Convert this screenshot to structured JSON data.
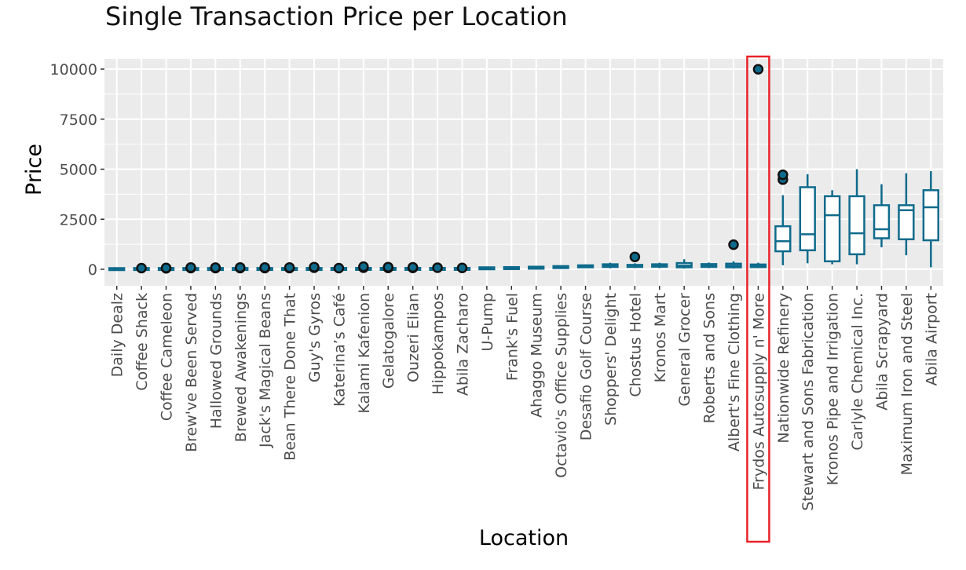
{
  "chart_data": {
    "type": "box",
    "title": "Single Transaction Price per Location",
    "xlabel": "Location",
    "ylabel": "Price",
    "ylim": [
      -500,
      10500
    ],
    "yticks": [
      0,
      2500,
      5000,
      7500,
      10000
    ],
    "ytick_labels": [
      "0",
      "2500",
      "5000",
      "7500",
      "10000"
    ],
    "grid": true,
    "box_color": "#0f6b8c",
    "outlier_color": "#111111",
    "highlight_color": "#e8232a",
    "highlight_category": "Frydos Autosupply n' More",
    "categories": [
      "Daily Dealz",
      "Coffee Shack",
      "Coffee Cameleon",
      "Brew've Been Served",
      "Hallowed Grounds",
      "Brewed Awakenings",
      "Jack's Magical Beans",
      "Bean There Done That",
      "Guy's Gyros",
      "Katerina’s Café",
      "Kalami Kafenion",
      "Gelatogalore",
      "Ouzeri Elian",
      "Hippokampos",
      "Abila Zacharo",
      "U-Pump",
      "Frank's Fuel",
      "Ahaggo Museum",
      "Octavio's Office Supplies",
      "Desafio Golf Course",
      "Shoppers' Delight",
      "Chostus Hotel",
      "Kronos Mart",
      "General Grocer",
      "Roberts and Sons",
      "Albert's Fine Clothing",
      "Frydos Autosupply n' More",
      "Nationwide Refinery",
      "Stewart and Sons Fabrication",
      "Kronos Pipe and Irrigation",
      "Carlyle Chemical Inc.",
      "Abila Scrapyard",
      "Maximum Iron and Steel",
      "Abila Airport"
    ],
    "series": [
      {
        "boxes": [
          {
            "min": 5,
            "q1": 8,
            "median": 10,
            "q3": 12,
            "max": 16,
            "outliers": []
          },
          {
            "min": 8,
            "q1": 12,
            "median": 14,
            "q3": 17,
            "max": 22,
            "outliers": [
              60
            ]
          },
          {
            "min": 8,
            "q1": 12,
            "median": 15,
            "q3": 18,
            "max": 24,
            "outliers": [
              50,
              70
            ]
          },
          {
            "min": 8,
            "q1": 12,
            "median": 15,
            "q3": 18,
            "max": 24,
            "outliers": [
              60,
              90
            ]
          },
          {
            "min": 8,
            "q1": 12,
            "median": 15,
            "q3": 18,
            "max": 25,
            "outliers": [
              60,
              85
            ]
          },
          {
            "min": 8,
            "q1": 12,
            "median": 15,
            "q3": 19,
            "max": 26,
            "outliers": [
              60,
              90
            ]
          },
          {
            "min": 8,
            "q1": 12,
            "median": 15,
            "q3": 19,
            "max": 26,
            "outliers": [
              60,
              90
            ]
          },
          {
            "min": 8,
            "q1": 12,
            "median": 15,
            "q3": 19,
            "max": 26,
            "outliers": [
              60,
              90
            ]
          },
          {
            "min": 8,
            "q1": 12,
            "median": 16,
            "q3": 20,
            "max": 28,
            "outliers": [
              80,
              110
            ]
          },
          {
            "min": 10,
            "q1": 14,
            "median": 18,
            "q3": 22,
            "max": 30,
            "outliers": [
              60
            ]
          },
          {
            "min": 10,
            "q1": 15,
            "median": 20,
            "q3": 26,
            "max": 36,
            "outliers": [
              80,
              130
            ]
          },
          {
            "min": 10,
            "q1": 15,
            "median": 20,
            "q3": 26,
            "max": 36,
            "outliers": [
              70,
              110
            ]
          },
          {
            "min": 10,
            "q1": 15,
            "median": 20,
            "q3": 26,
            "max": 36,
            "outliers": [
              70,
              100
            ]
          },
          {
            "min": 10,
            "q1": 15,
            "median": 20,
            "q3": 26,
            "max": 36,
            "outliers": [
              80
            ]
          },
          {
            "min": 10,
            "q1": 15,
            "median": 20,
            "q3": 26,
            "max": 36,
            "outliers": [
              70
            ]
          },
          {
            "min": 20,
            "q1": 40,
            "median": 50,
            "q3": 60,
            "max": 80,
            "outliers": []
          },
          {
            "min": 30,
            "q1": 45,
            "median": 60,
            "q3": 75,
            "max": 95,
            "outliers": []
          },
          {
            "min": 30,
            "q1": 60,
            "median": 80,
            "q3": 100,
            "max": 130,
            "outliers": []
          },
          {
            "min": 40,
            "q1": 80,
            "median": 110,
            "q3": 140,
            "max": 180,
            "outliers": []
          },
          {
            "min": 60,
            "q1": 110,
            "median": 150,
            "q3": 190,
            "max": 240,
            "outliers": []
          },
          {
            "min": 50,
            "q1": 120,
            "median": 180,
            "q3": 250,
            "max": 330,
            "outliers": []
          },
          {
            "min": 60,
            "q1": 120,
            "median": 170,
            "q3": 220,
            "max": 300,
            "outliers": [
              620
            ]
          },
          {
            "min": 60,
            "q1": 130,
            "median": 190,
            "q3": 250,
            "max": 330,
            "outliers": []
          },
          {
            "min": 40,
            "q1": 100,
            "median": 180,
            "q3": 310,
            "max": 500,
            "outliers": []
          },
          {
            "min": 60,
            "q1": 120,
            "median": 180,
            "q3": 260,
            "max": 340,
            "outliers": []
          },
          {
            "min": 40,
            "q1": 100,
            "median": 180,
            "q3": 280,
            "max": 400,
            "outliers": [
              1230
            ]
          },
          {
            "min": 60,
            "q1": 110,
            "median": 170,
            "q3": 240,
            "max": 330,
            "outliers": [
              9990
            ]
          },
          {
            "min": 200,
            "q1": 900,
            "median": 1400,
            "q3": 2150,
            "max": 3700,
            "outliers": [
              4480,
              4720
            ]
          },
          {
            "min": 300,
            "q1": 950,
            "median": 1750,
            "q3": 4100,
            "max": 4750,
            "outliers": []
          },
          {
            "min": 250,
            "q1": 400,
            "median": 2700,
            "q3": 3650,
            "max": 3950,
            "outliers": []
          },
          {
            "min": 250,
            "q1": 750,
            "median": 1800,
            "q3": 3650,
            "max": 5000,
            "outliers": []
          },
          {
            "min": 1100,
            "q1": 1550,
            "median": 2000,
            "q3": 3200,
            "max": 4250,
            "outliers": []
          },
          {
            "min": 700,
            "q1": 1500,
            "median": 2950,
            "q3": 3200,
            "max": 4800,
            "outliers": []
          },
          {
            "min": 100,
            "q1": 1450,
            "median": 3100,
            "q3": 3950,
            "max": 4900,
            "outliers": []
          }
        ]
      }
    ]
  }
}
